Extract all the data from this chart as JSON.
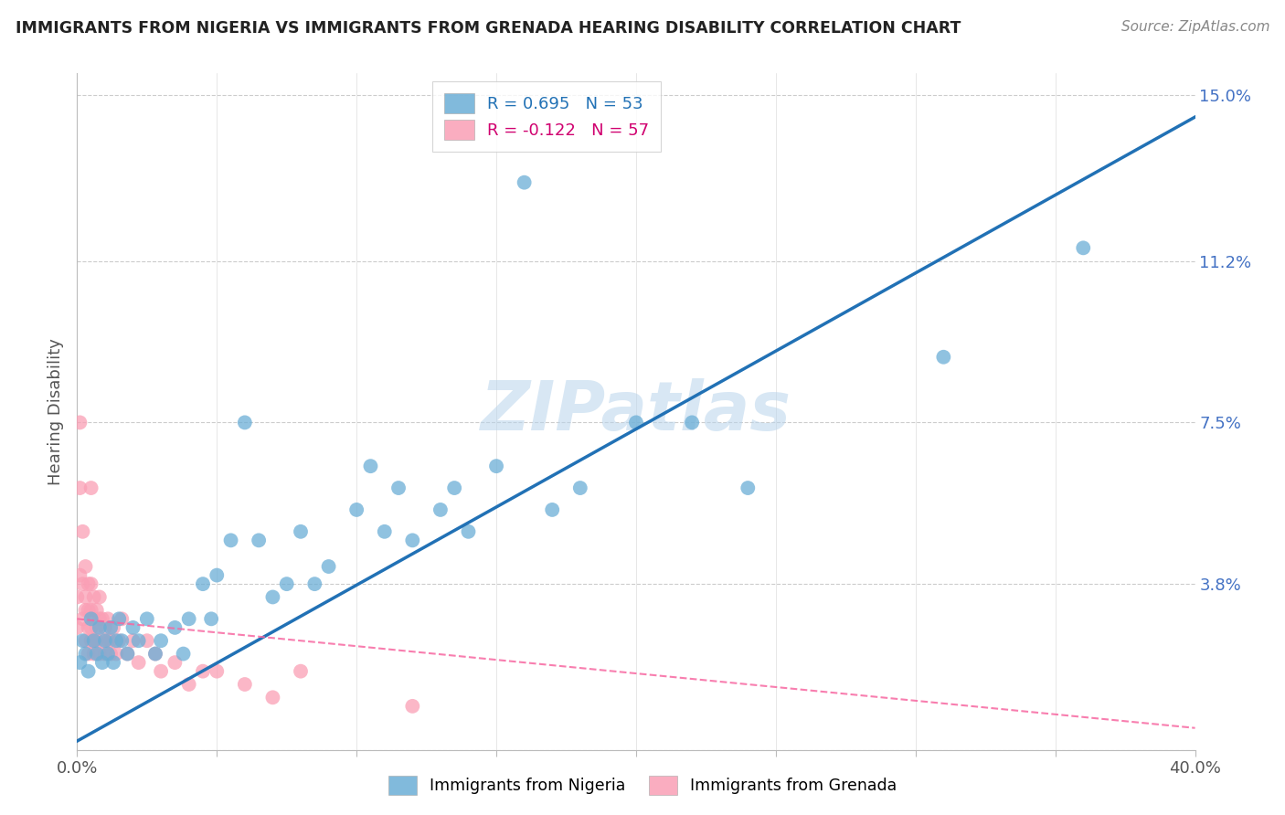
{
  "title": "IMMIGRANTS FROM NIGERIA VS IMMIGRANTS FROM GRENADA HEARING DISABILITY CORRELATION CHART",
  "source": "Source: ZipAtlas.com",
  "ylabel": "Hearing Disability",
  "xlim": [
    0.0,
    0.4
  ],
  "ylim": [
    0.0,
    0.155
  ],
  "xticks": [
    0.0,
    0.05,
    0.1,
    0.15,
    0.2,
    0.25,
    0.3,
    0.35,
    0.4
  ],
  "ytick_positions": [
    0.0,
    0.038,
    0.075,
    0.112,
    0.15
  ],
  "ytick_labels": [
    "",
    "3.8%",
    "7.5%",
    "11.2%",
    "15.0%"
  ],
  "nigeria_R": 0.695,
  "nigeria_N": 53,
  "grenada_R": -0.122,
  "grenada_N": 57,
  "nigeria_color": "#6baed6",
  "grenada_color": "#fa9fb5",
  "nigeria_line_color": "#2171b5",
  "grenada_line_color": "#f768a1",
  "watermark": "ZIPatlas",
  "nigeria_scatter_x": [
    0.001,
    0.002,
    0.003,
    0.004,
    0.005,
    0.006,
    0.007,
    0.008,
    0.009,
    0.01,
    0.011,
    0.012,
    0.013,
    0.014,
    0.015,
    0.016,
    0.018,
    0.02,
    0.022,
    0.025,
    0.028,
    0.03,
    0.035,
    0.038,
    0.04,
    0.045,
    0.048,
    0.05,
    0.055,
    0.06,
    0.065,
    0.07,
    0.075,
    0.08,
    0.085,
    0.09,
    0.1,
    0.105,
    0.11,
    0.115,
    0.12,
    0.13,
    0.135,
    0.14,
    0.15,
    0.16,
    0.17,
    0.18,
    0.2,
    0.22,
    0.24,
    0.31,
    0.36
  ],
  "nigeria_scatter_y": [
    0.02,
    0.025,
    0.022,
    0.018,
    0.03,
    0.025,
    0.022,
    0.028,
    0.02,
    0.025,
    0.022,
    0.028,
    0.02,
    0.025,
    0.03,
    0.025,
    0.022,
    0.028,
    0.025,
    0.03,
    0.022,
    0.025,
    0.028,
    0.022,
    0.03,
    0.038,
    0.03,
    0.04,
    0.048,
    0.075,
    0.048,
    0.035,
    0.038,
    0.05,
    0.038,
    0.042,
    0.055,
    0.065,
    0.05,
    0.06,
    0.048,
    0.055,
    0.06,
    0.05,
    0.065,
    0.13,
    0.055,
    0.06,
    0.075,
    0.075,
    0.06,
    0.09,
    0.115
  ],
  "grenada_scatter_x": [
    0.0,
    0.0,
    0.001,
    0.001,
    0.001,
    0.002,
    0.002,
    0.002,
    0.003,
    0.003,
    0.003,
    0.003,
    0.004,
    0.004,
    0.004,
    0.004,
    0.005,
    0.005,
    0.005,
    0.005,
    0.005,
    0.006,
    0.006,
    0.006,
    0.006,
    0.007,
    0.007,
    0.007,
    0.008,
    0.008,
    0.008,
    0.009,
    0.009,
    0.01,
    0.01,
    0.011,
    0.011,
    0.012,
    0.012,
    0.013,
    0.014,
    0.015,
    0.016,
    0.018,
    0.02,
    0.022,
    0.025,
    0.028,
    0.03,
    0.035,
    0.04,
    0.045,
    0.05,
    0.06,
    0.07,
    0.08,
    0.12
  ],
  "grenada_scatter_y": [
    0.035,
    0.028,
    0.04,
    0.06,
    0.075,
    0.038,
    0.05,
    0.03,
    0.032,
    0.025,
    0.042,
    0.035,
    0.028,
    0.038,
    0.022,
    0.032,
    0.038,
    0.028,
    0.032,
    0.025,
    0.06,
    0.035,
    0.025,
    0.03,
    0.022,
    0.032,
    0.025,
    0.028,
    0.03,
    0.022,
    0.035,
    0.025,
    0.03,
    0.022,
    0.028,
    0.025,
    0.03,
    0.022,
    0.025,
    0.028,
    0.022,
    0.025,
    0.03,
    0.022,
    0.025,
    0.02,
    0.025,
    0.022,
    0.018,
    0.02,
    0.015,
    0.018,
    0.018,
    0.015,
    0.012,
    0.018,
    0.01
  ],
  "nigeria_line_x": [
    0.0,
    0.4
  ],
  "nigeria_line_y": [
    0.002,
    0.145
  ],
  "grenada_line_x": [
    0.0,
    0.4
  ],
  "grenada_line_y": [
    0.03,
    0.005
  ]
}
